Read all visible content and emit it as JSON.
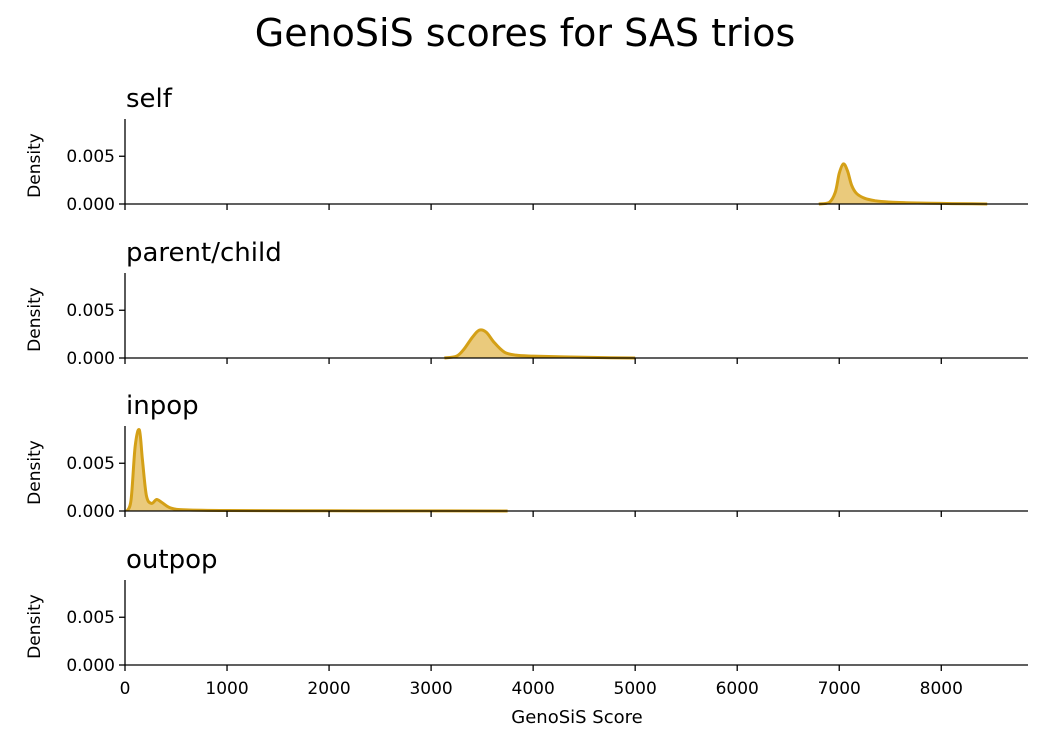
{
  "chart_data": {
    "type": "area",
    "title": "GenoSiS scores for SAS trios",
    "xlabel": "GenoSiS Score",
    "ylabel": "Density",
    "xlim": [
      0,
      8850
    ],
    "ylim": [
      0,
      0.0089
    ],
    "x_ticks": [
      0,
      1000,
      2000,
      3000,
      4000,
      5000,
      6000,
      7000,
      8000
    ],
    "y_ticks": [
      0.0,
      0.005
    ],
    "y_tick_labels": [
      "0.000",
      "0.005"
    ],
    "grid": false,
    "series_color": "#D4A017",
    "fill_color": "#E8C46E",
    "panels": [
      {
        "name": "self",
        "points": [
          [
            6800,
            0
          ],
          [
            6900,
            0.00015
          ],
          [
            6960,
            0.0012
          ],
          [
            7000,
            0.0032
          ],
          [
            7040,
            0.0042
          ],
          [
            7080,
            0.0035
          ],
          [
            7120,
            0.002
          ],
          [
            7170,
            0.0011
          ],
          [
            7250,
            0.0006
          ],
          [
            7350,
            0.00035
          ],
          [
            7500,
            0.0002
          ],
          [
            7700,
            0.00012
          ],
          [
            8000,
            6e-05
          ],
          [
            8300,
            2e-05
          ],
          [
            8450,
            0
          ]
        ]
      },
      {
        "name": "parent/child",
        "points": [
          [
            3130,
            0
          ],
          [
            3250,
            0.0002
          ],
          [
            3320,
            0.0009
          ],
          [
            3400,
            0.0021
          ],
          [
            3470,
            0.0029
          ],
          [
            3540,
            0.0027
          ],
          [
            3620,
            0.0016
          ],
          [
            3720,
            0.0006
          ],
          [
            3830,
            0.0003
          ],
          [
            4000,
            0.0002
          ],
          [
            4300,
            0.00012
          ],
          [
            4700,
            4e-05
          ],
          [
            5000,
            0
          ]
        ]
      },
      {
        "name": "inpop",
        "points": [
          [
            20,
            0
          ],
          [
            60,
            0.0012
          ],
          [
            100,
            0.0068
          ],
          [
            140,
            0.0085
          ],
          [
            170,
            0.0055
          ],
          [
            210,
            0.0016
          ],
          [
            260,
            0.0008
          ],
          [
            310,
            0.0012
          ],
          [
            360,
            0.0009
          ],
          [
            450,
            0.0003
          ],
          [
            600,
            0.00012
          ],
          [
            1000,
            5e-05
          ],
          [
            2000,
            2e-05
          ],
          [
            3000,
            1e-05
          ],
          [
            3750,
            0
          ]
        ]
      },
      {
        "name": "outpop",
        "points": []
      }
    ]
  }
}
